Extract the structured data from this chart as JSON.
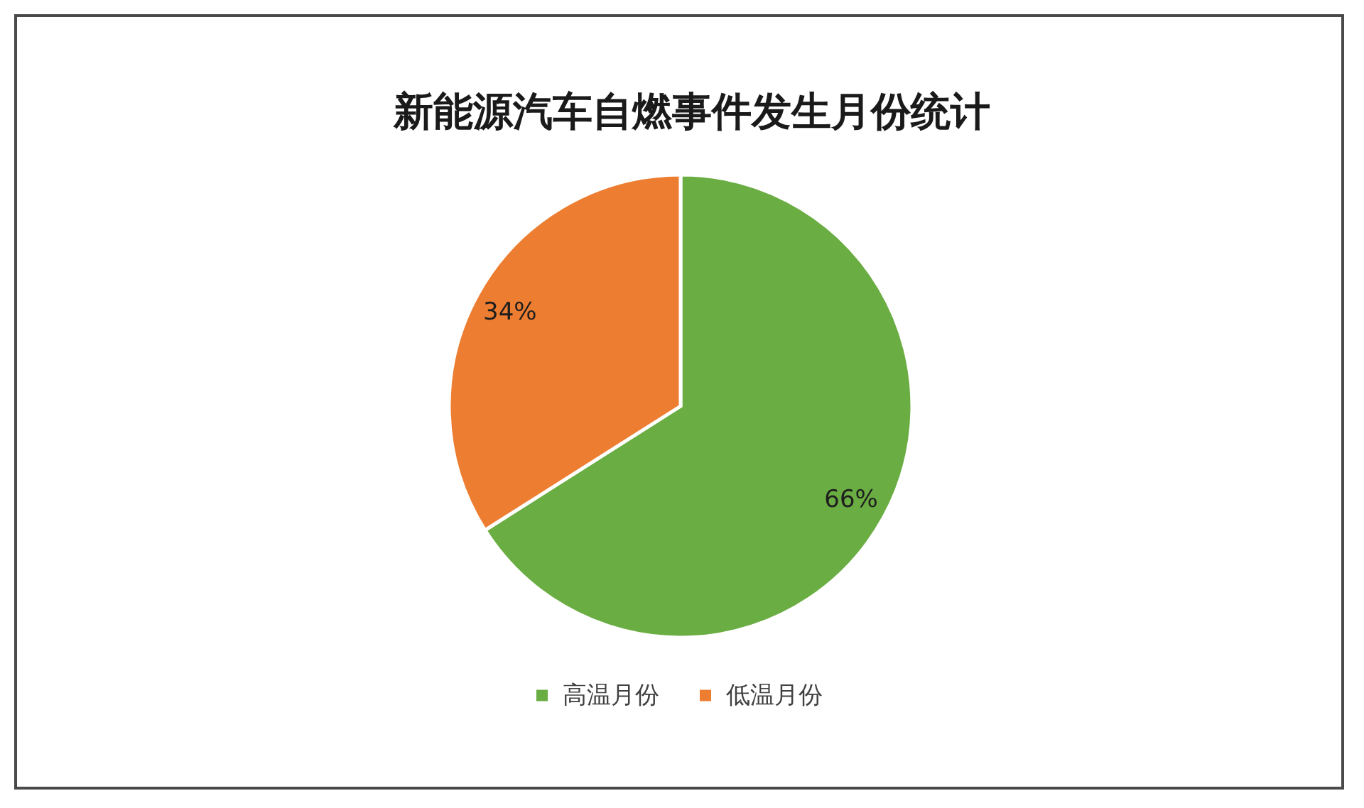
{
  "chart_data": {
    "type": "pie",
    "title": "新能源汽车自燃事件发生月份统计",
    "categories": [
      "高温月份",
      "低温月份"
    ],
    "values": [
      66,
      34
    ],
    "colors": [
      "#6aad42",
      "#ed7d31"
    ],
    "value_labels": [
      "66%",
      "34%"
    ],
    "legend": "bottom"
  }
}
